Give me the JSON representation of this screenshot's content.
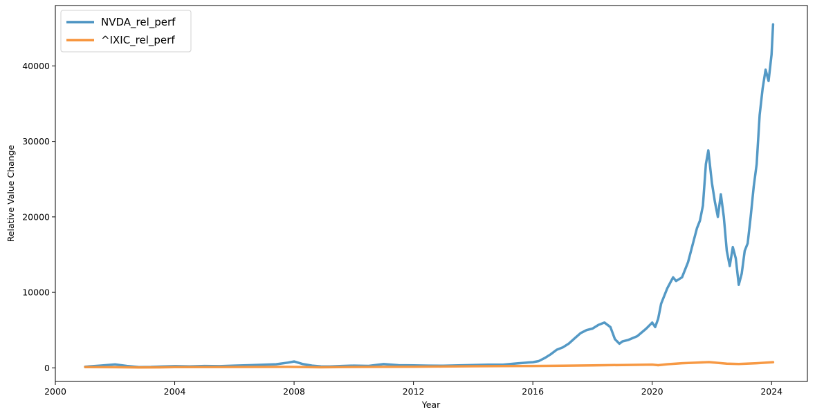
{
  "chart_data": {
    "type": "line",
    "title": "",
    "xlabel": "Year",
    "ylabel": "Relative Value Change",
    "xlim": [
      2000.0,
      2025.2
    ],
    "ylim": [
      -1800,
      48000
    ],
    "x_ticks": [
      2000,
      2004,
      2008,
      2012,
      2016,
      2020,
      2024
    ],
    "y_ticks": [
      0,
      10000,
      20000,
      30000,
      40000
    ],
    "grid": false,
    "legend_position": "top-left",
    "series": [
      {
        "name": "NVDA_rel_perf",
        "color": "#4b93c2",
        "x": [
          2001.0,
          2001.5,
          2002.0,
          2002.4,
          2002.8,
          2003.2,
          2003.6,
          2004.0,
          2004.5,
          2005.0,
          2005.5,
          2006.0,
          2006.5,
          2007.0,
          2007.4,
          2007.8,
          2008.0,
          2008.3,
          2008.6,
          2008.9,
          2009.2,
          2009.6,
          2010.0,
          2010.5,
          2011.0,
          2011.5,
          2012.0,
          2012.5,
          2013.0,
          2013.5,
          2014.0,
          2014.5,
          2015.0,
          2015.5,
          2015.8,
          2016.0,
          2016.2,
          2016.4,
          2016.6,
          2016.8,
          2017.0,
          2017.2,
          2017.4,
          2017.6,
          2017.8,
          2018.0,
          2018.2,
          2018.4,
          2018.6,
          2018.75,
          2018.9,
          2019.0,
          2019.2,
          2019.5,
          2019.8,
          2020.0,
          2020.1,
          2020.2,
          2020.3,
          2020.5,
          2020.7,
          2020.8,
          2021.0,
          2021.2,
          2021.3,
          2021.4,
          2021.5,
          2021.6,
          2021.7,
          2021.8,
          2021.88,
          2022.0,
          2022.1,
          2022.2,
          2022.3,
          2022.4,
          2022.5,
          2022.6,
          2022.7,
          2022.8,
          2022.9,
          2023.0,
          2023.1,
          2023.2,
          2023.3,
          2023.4,
          2023.5,
          2023.6,
          2023.7,
          2023.8,
          2023.9,
          2024.0,
          2024.05
        ],
        "y": [
          150,
          300,
          450,
          250,
          100,
          120,
          180,
          220,
          200,
          250,
          220,
          300,
          350,
          420,
          480,
          700,
          850,
          500,
          300,
          200,
          180,
          250,
          300,
          260,
          500,
          350,
          320,
          300,
          280,
          330,
          380,
          420,
          420,
          600,
          700,
          750,
          900,
          1300,
          1800,
          2400,
          2700,
          3200,
          3900,
          4600,
          5000,
          5200,
          5700,
          6000,
          5400,
          3800,
          3200,
          3500,
          3700,
          4200,
          5200,
          6000,
          5400,
          6500,
          8500,
          10500,
          12000,
          11500,
          12000,
          14000,
          15500,
          17000,
          18500,
          19500,
          21500,
          27000,
          28800,
          24500,
          22000,
          20000,
          23000,
          20000,
          15500,
          13500,
          16000,
          14500,
          11000,
          12500,
          15500,
          16500,
          20000,
          24000,
          27000,
          33500,
          37000,
          39500,
          38000,
          41500,
          45500
        ]
      },
      {
        "name": "^IXIC_rel_perf",
        "color": "#f7933a",
        "x": [
          2001.0,
          2002.0,
          2002.8,
          2003.5,
          2004.0,
          2006.0,
          2007.8,
          2008.9,
          2009.5,
          2011.0,
          2012.0,
          2013.0,
          2014.0,
          2015.0,
          2016.0,
          2017.0,
          2018.0,
          2019.0,
          2020.0,
          2020.2,
          2020.5,
          2021.0,
          2021.5,
          2021.9,
          2022.5,
          2022.9,
          2023.5,
          2024.05
        ],
        "y": [
          100,
          90,
          60,
          70,
          100,
          110,
          130,
          80,
          100,
          130,
          150,
          180,
          210,
          240,
          250,
          280,
          330,
          380,
          430,
          350,
          480,
          620,
          700,
          760,
          560,
          520,
          620,
          750
        ]
      }
    ]
  }
}
